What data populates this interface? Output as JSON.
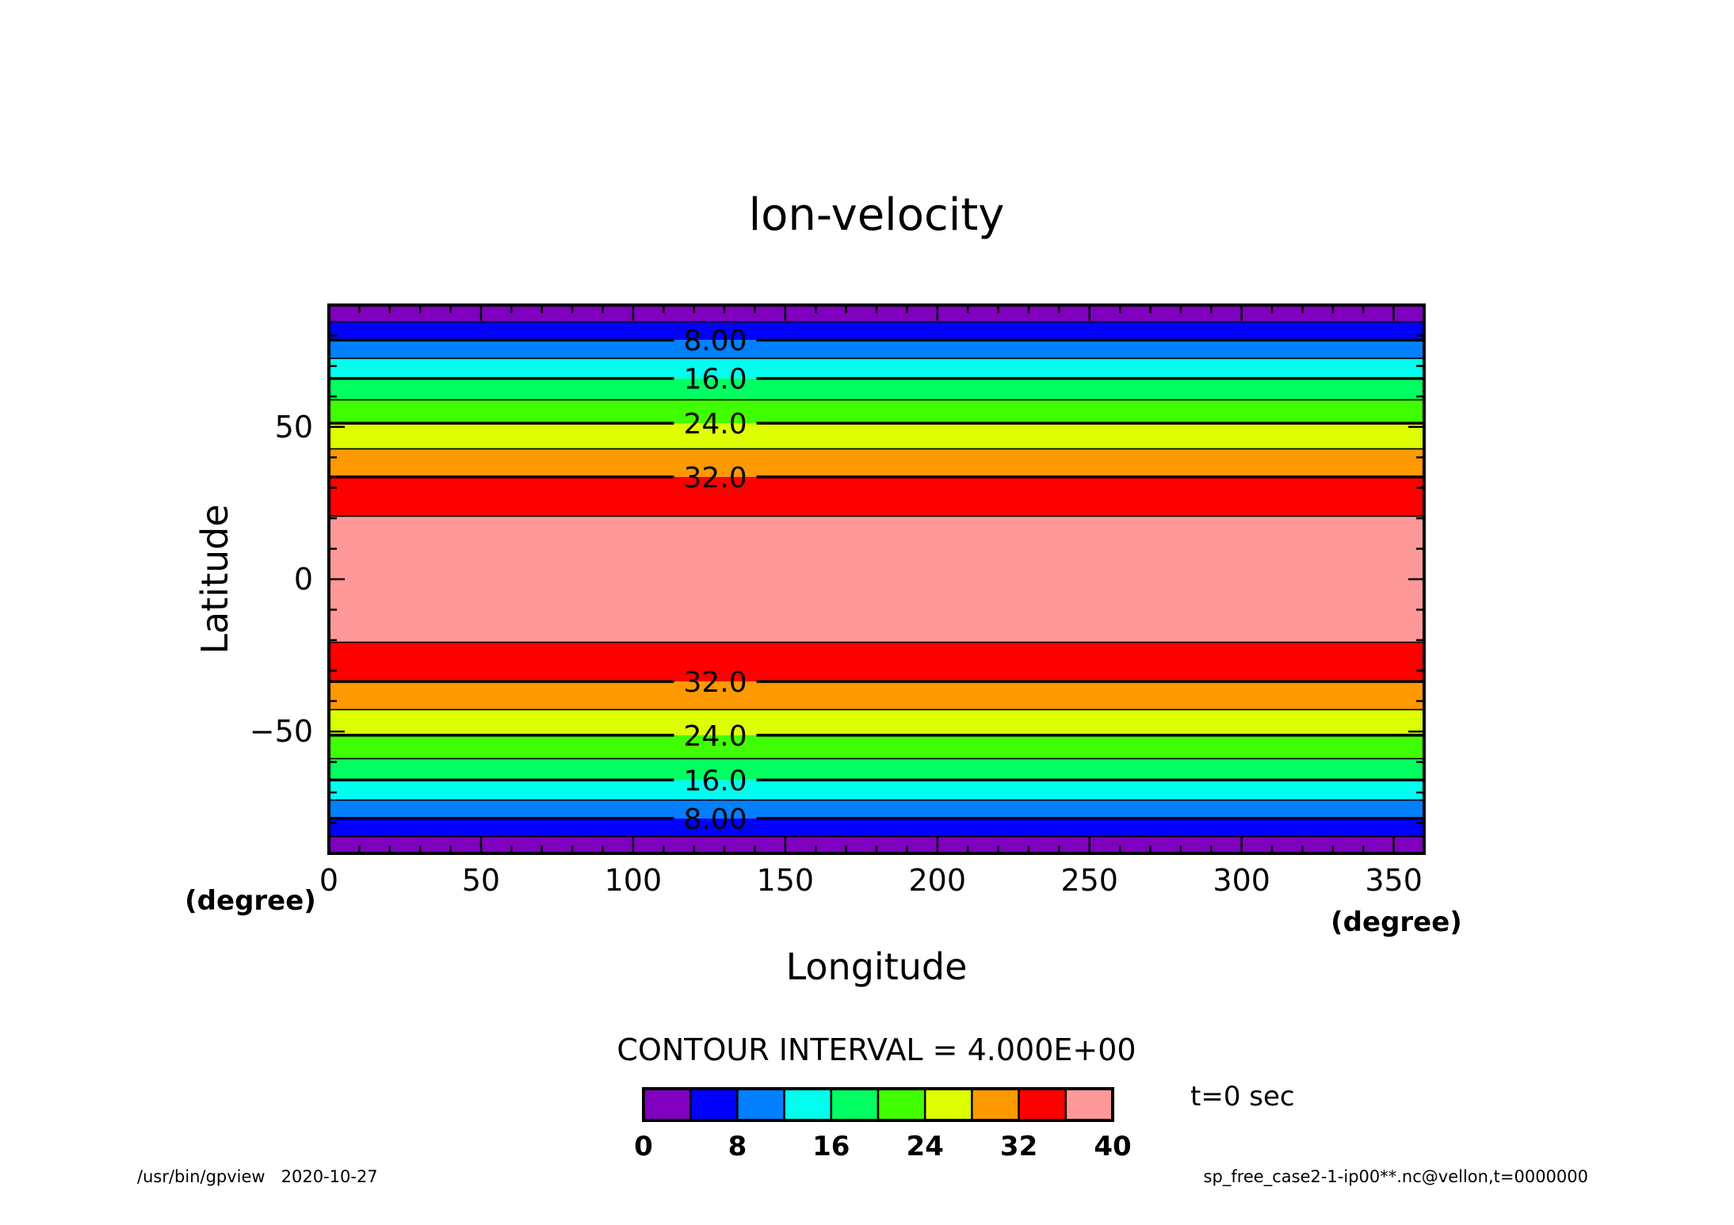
{
  "chart_data": {
    "type": "heatmap",
    "title": "lon-velocity",
    "xlabel": "Longitude",
    "ylabel": "Latitude",
    "x_unit": "(degree)",
    "y_unit": "(degree)",
    "xlim": [
      0,
      360
    ],
    "ylim": [
      -90,
      90
    ],
    "x_ticks": [
      0,
      50,
      100,
      150,
      200,
      250,
      300,
      350
    ],
    "y_ticks": [
      -50,
      0,
      50
    ],
    "contour_interval_text": "CONTOUR INTERVAL = 4.000E+00",
    "bands": [
      {
        "lat_range": [
          84.5,
          90
        ],
        "level": [
          0,
          4
        ],
        "color": "#7f00bf"
      },
      {
        "lat_range": [
          78.5,
          84.5
        ],
        "level": [
          4,
          8
        ],
        "color": "#0000ff"
      },
      {
        "lat_range": [
          72.5,
          78.5
        ],
        "level": [
          8,
          12
        ],
        "color": "#0080ff"
      },
      {
        "lat_range": [
          65.9,
          72.5
        ],
        "level": [
          12,
          16
        ],
        "color": "#00ffee"
      },
      {
        "lat_range": [
          58.9,
          65.9
        ],
        "level": [
          16,
          20
        ],
        "color": "#00ff60"
      },
      {
        "lat_range": [
          51.2,
          58.9
        ],
        "level": [
          20,
          24
        ],
        "color": "#40ff00"
      },
      {
        "lat_range": [
          42.8,
          51.2
        ],
        "level": [
          24,
          28
        ],
        "color": "#ddff00"
      },
      {
        "lat_range": [
          33.6,
          42.8
        ],
        "level": [
          28,
          32
        ],
        "color": "#ff9900"
      },
      {
        "lat_range": [
          20.7,
          33.6
        ],
        "level": [
          32,
          36
        ],
        "color": "#ff0000"
      },
      {
        "lat_range": [
          -20.7,
          20.7
        ],
        "level": [
          36,
          40
        ],
        "color": "#ff9999"
      },
      {
        "lat_range": [
          -33.6,
          -20.7
        ],
        "level": [
          32,
          36
        ],
        "color": "#ff0000"
      },
      {
        "lat_range": [
          -42.8,
          -33.6
        ],
        "level": [
          28,
          32
        ],
        "color": "#ff9900"
      },
      {
        "lat_range": [
          -51.2,
          -42.8
        ],
        "level": [
          24,
          28
        ],
        "color": "#ddff00"
      },
      {
        "lat_range": [
          -58.9,
          -51.2
        ],
        "level": [
          20,
          24
        ],
        "color": "#40ff00"
      },
      {
        "lat_range": [
          -65.9,
          -58.9
        ],
        "level": [
          16,
          20
        ],
        "color": "#00ff60"
      },
      {
        "lat_range": [
          -72.5,
          -65.9
        ],
        "level": [
          12,
          16
        ],
        "color": "#00ffee"
      },
      {
        "lat_range": [
          -78.5,
          -72.5
        ],
        "level": [
          8,
          12
        ],
        "color": "#0080ff"
      },
      {
        "lat_range": [
          -84.5,
          -78.5
        ],
        "level": [
          4,
          8
        ],
        "color": "#0000ff"
      },
      {
        "lat_range": [
          -90,
          -84.5
        ],
        "level": [
          0,
          4
        ],
        "color": "#7f00bf"
      }
    ],
    "contour_labels": [
      {
        "text": "8.00",
        "lon": 127,
        "lat": 78.5
      },
      {
        "text": "16.0",
        "lon": 127,
        "lat": 65.9
      },
      {
        "text": "24.0",
        "lon": 127,
        "lat": 51.2
      },
      {
        "text": "32.0",
        "lon": 127,
        "lat": 33.6
      },
      {
        "text": "32.0",
        "lon": 127,
        "lat": -33.6
      },
      {
        "text": "24.0",
        "lon": 127,
        "lat": -51.2
      },
      {
        "text": "16.0",
        "lon": 127,
        "lat": -65.9
      },
      {
        "text": "8.00",
        "lon": 127,
        "lat": -78.5
      }
    ],
    "colorbar": {
      "colors": [
        "#7f00bf",
        "#0000ff",
        "#0080ff",
        "#00ffee",
        "#00ff60",
        "#40ff00",
        "#ddff00",
        "#ff9900",
        "#ff0000",
        "#ff9999"
      ],
      "range": [
        0,
        40
      ],
      "tick_labels": [
        "0",
        "8",
        "16",
        "24",
        "32",
        "40"
      ]
    }
  },
  "annotations": {
    "time": "t=0 sec",
    "footer_left": "/usr/bin/gpview   2020-10-27",
    "footer_right": "sp_free_case2-1-ip00**.nc@vellon,t=0000000"
  }
}
